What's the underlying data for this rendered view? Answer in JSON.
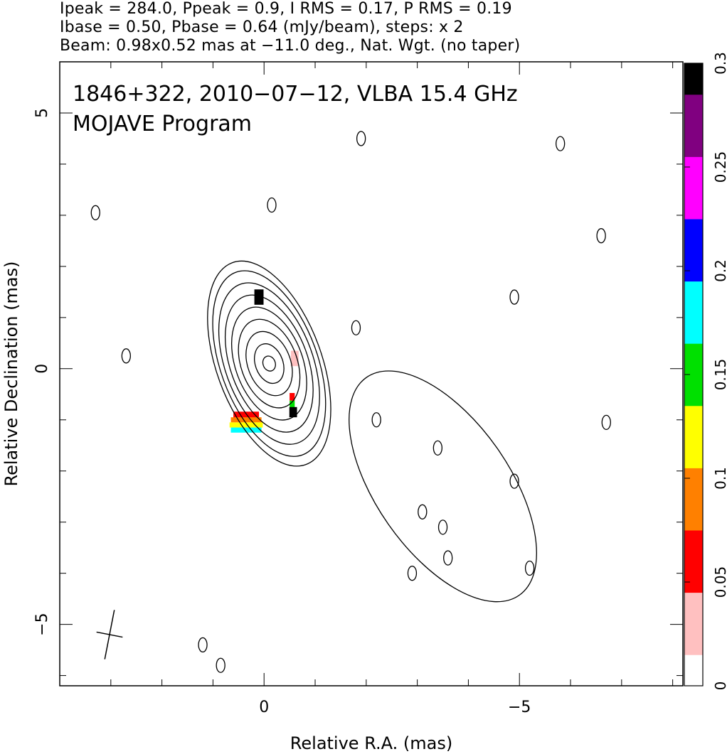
{
  "header": {
    "line1": "Ipeak = 284.0, Ppeak = 0.9, I RMS = 0.17, P RMS = 0.19",
    "line2": "Ibase = 0.50, Pbase = 0.64 (mJy/beam), steps: x 2",
    "line3": "Beam: 0.98x0.52 mas at −11.0 deg., Nat. Wgt. (no taper)"
  },
  "chart_data": {
    "type": "contour",
    "title_line1": "1846+322, 2010−07−12, VLBA 15.4 GHz",
    "title_line2": "MOJAVE Program",
    "xlabel": "Relative R.A. (mas)",
    "ylabel": "Relative Declination (mas)",
    "xlim": [
      4.0,
      -8.2
    ],
    "ylim": [
      -6.2,
      6.0
    ],
    "x_ticks": [
      {
        "value": 0,
        "label": "0"
      },
      {
        "value": -5,
        "label": "−5"
      }
    ],
    "y_ticks": [
      {
        "value": 5,
        "label": "5"
      },
      {
        "value": 0,
        "label": "0"
      },
      {
        "value": -5,
        "label": "−5"
      }
    ],
    "beam": {
      "major_mas": 0.98,
      "minor_mas": 0.52,
      "pa_deg": -11.0
    },
    "colorbar": {
      "min": 0,
      "max": 0.3,
      "ticks": [
        {
          "value": 0,
          "label": "0"
        },
        {
          "value": 0.05,
          "label": "0.05"
        },
        {
          "value": 0.1,
          "label": "0.1"
        },
        {
          "value": 0.15,
          "label": "0.15"
        },
        {
          "value": 0.2,
          "label": "0.2"
        },
        {
          "value": 0.25,
          "label": "0.25"
        },
        {
          "value": 0.3,
          "label": "0.3"
        }
      ],
      "colors": [
        "#ffffff",
        "#ffc0c0",
        "#ff0000",
        "#ff8000",
        "#ffff00",
        "#00e000",
        "#00ffff",
        "#0000ff",
        "#ff00ff",
        "#800080",
        "#000000"
      ]
    },
    "core": {
      "x": -0.1,
      "y": 0.1,
      "contour_levels_mas": [
        [
          0.12,
          0.15
        ],
        [
          0.27,
          0.4
        ],
        [
          0.42,
          0.65
        ],
        [
          0.55,
          0.9
        ],
        [
          0.66,
          1.15
        ],
        [
          0.76,
          1.4
        ],
        [
          0.86,
          1.65
        ],
        [
          0.95,
          1.9
        ],
        [
          1.03,
          2.1
        ]
      ],
      "pa_deg": -20
    },
    "jet_region": {
      "center_x": -3.5,
      "center_y": -2.3,
      "semi_major": 2.6,
      "semi_minor": 1.3,
      "pa_deg": -35
    },
    "small_contours": [
      {
        "x": -0.15,
        "y": 3.2
      },
      {
        "x": -1.9,
        "y": 4.5
      },
      {
        "x": -5.8,
        "y": 4.4
      },
      {
        "x": 3.3,
        "y": 3.05
      },
      {
        "x": 2.7,
        "y": 0.25
      },
      {
        "x": -1.8,
        "y": 0.8
      },
      {
        "x": -4.9,
        "y": 1.4
      },
      {
        "x": -6.6,
        "y": 2.6
      },
      {
        "x": -2.2,
        "y": -1.0
      },
      {
        "x": -6.7,
        "y": -1.05
      },
      {
        "x": -5.2,
        "y": -3.9
      },
      {
        "x": 1.2,
        "y": -5.4
      },
      {
        "x": 0.85,
        "y": -5.8
      },
      {
        "x": -3.4,
        "y": -1.55
      },
      {
        "x": -3.5,
        "y": -3.1
      },
      {
        "x": -3.1,
        "y": -2.8
      },
      {
        "x": -4.9,
        "y": -2.2
      },
      {
        "x": -3.6,
        "y": -3.7
      },
      {
        "x": -2.9,
        "y": -4.0
      }
    ],
    "pol_pixels": [
      {
        "x": 0.1,
        "y": 1.4,
        "v": 0.3,
        "w": 0.18,
        "h": 0.3
      },
      {
        "x": -0.6,
        "y": 0.2,
        "v": 0.02,
        "w": 0.15,
        "h": 0.3
      },
      {
        "x": -0.05,
        "y": 0.0,
        "v": 0.01,
        "w": 0.1,
        "h": 0.2
      },
      {
        "x": 0.35,
        "y": -0.9,
        "v": 0.05,
        "w": 0.5,
        "h": 0.12
      },
      {
        "x": 0.35,
        "y": -1.0,
        "v": 0.08,
        "w": 0.6,
        "h": 0.1
      },
      {
        "x": 0.35,
        "y": -1.1,
        "v": 0.13,
        "w": 0.65,
        "h": 0.1
      },
      {
        "x": 0.35,
        "y": -1.2,
        "v": 0.19,
        "w": 0.6,
        "h": 0.1
      },
      {
        "x": -0.55,
        "y": -0.55,
        "v": 0.07,
        "w": 0.1,
        "h": 0.15
      },
      {
        "x": -0.55,
        "y": -0.7,
        "v": 0.16,
        "w": 0.1,
        "h": 0.15
      },
      {
        "x": -0.57,
        "y": -0.85,
        "v": 0.3,
        "w": 0.15,
        "h": 0.2
      }
    ]
  }
}
